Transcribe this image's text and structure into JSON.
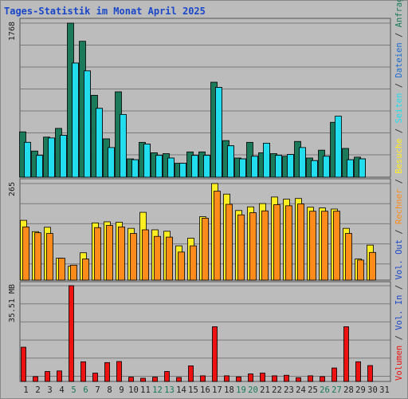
{
  "chart_data": {
    "type": "bar",
    "title": "Tages-Statistik im Monat April 2025",
    "categories": [
      "1",
      "2",
      "3",
      "4",
      "5",
      "6",
      "7",
      "8",
      "9",
      "10",
      "11",
      "12",
      "13",
      "14",
      "15",
      "16",
      "17",
      "18",
      "19",
      "20",
      "21",
      "22",
      "23",
      "24",
      "25",
      "26",
      "27",
      "28",
      "29",
      "30",
      "31"
    ],
    "weekend_category_color": "#1a7a5a",
    "weekend_categories": [
      "5",
      "6",
      "12",
      "13",
      "19",
      "20",
      "26",
      "27"
    ],
    "text_color": "#222222",
    "panels": [
      {
        "id": "top",
        "max_label": "1768",
        "ylim": [
          0,
          1768
        ],
        "series": [
          {
            "name": "Anfragen",
            "color": "#1a7a5a",
            "values": [
              520,
              300,
              460,
              560,
              1768,
              1560,
              940,
              440,
              980,
              210,
              400,
              280,
              270,
              160,
              290,
              290,
              1090,
              420,
              220,
              400,
              280,
              270,
              240,
              410,
              220,
              310,
              630,
              330,
              230,
              null,
              null
            ]
          },
          {
            "name": "Dateien",
            "color": "#1a6ad0",
            "values": [
              400,
              250,
              450,
              480,
              1310,
              1220,
              790,
              340,
              690,
              200,
              380,
              250,
              220,
              160,
              250,
              250,
              1030,
              360,
              210,
              240,
              390,
              250,
              260,
              340,
              190,
              240,
              430,
              200,
              210,
              null,
              null
            ]
          },
          {
            "name": "Seiten",
            "color": "#22ddee",
            "values": [
              400,
              250,
              450,
              480,
              1310,
              1220,
              790,
              340,
              720,
              200,
              380,
              250,
              220,
              160,
              250,
              250,
              1030,
              360,
              210,
              240,
              390,
              250,
              260,
              340,
              190,
              240,
              700,
              200,
              210,
              null,
              null
            ]
          }
        ]
      },
      {
        "id": "mid",
        "max_label": "265",
        "ylim": [
          0,
          265
        ],
        "series": [
          {
            "name": "Besuche",
            "color": "#ffee22",
            "values": [
              164,
              133,
              145,
              60,
              38,
              75,
              157,
              160,
              159,
              142,
              186,
              138,
              134,
              94,
              115,
              174,
              265,
              236,
              191,
              201,
              210,
              228,
              222,
              224,
              200,
              198,
              195,
              142,
              58,
              96,
              null
            ]
          },
          {
            "name": "Rechner",
            "color": "#ff8c1a",
            "values": [
              146,
              130,
              128,
              60,
              41,
              58,
              144,
              150,
              146,
              128,
              138,
              120,
              118,
              77,
              94,
              170,
              244,
              208,
              179,
              185,
              190,
              207,
              204,
              209,
              189,
              189,
              189,
              128,
              55,
              76,
              null
            ]
          }
        ]
      },
      {
        "id": "bot",
        "max_label": "35.51 MB",
        "ylim": [
          0,
          35.51
        ],
        "series": [
          {
            "name": "Volumen",
            "color": "#ee1111",
            "values": [
              12.7,
              1.8,
              3.7,
              3.9,
              35.51,
              7.3,
              3.1,
              7.0,
              7.4,
              1.6,
              1.2,
              1.6,
              3.7,
              1.5,
              5.8,
              2.1,
              20.3,
              2.1,
              1.7,
              2.8,
              3.1,
              2.1,
              2.3,
              1.4,
              2.1,
              1.8,
              5.0,
              20.3,
              7.3,
              5.9,
              null
            ]
          }
        ]
      }
    ],
    "side_legend": [
      "Volumen",
      "Vol. In",
      "Vol. Out",
      "Rechner",
      "Besuche",
      "Seiten",
      "Dateien",
      "Anfragen"
    ],
    "side_legend_colors": [
      "#ee1111",
      "#1a47c8",
      "#1a47c8",
      "#ff8c1a",
      "#ffee22",
      "#22ddee",
      "#1a6ad0",
      "#1a7a5a"
    ],
    "grid": true,
    "legend_position": "right-vertical"
  }
}
